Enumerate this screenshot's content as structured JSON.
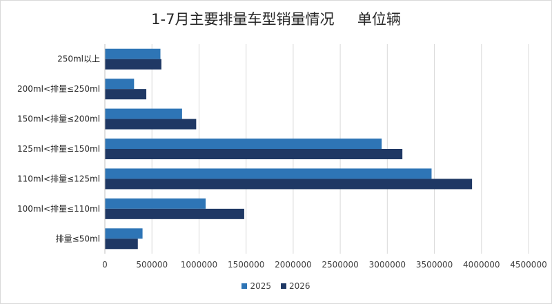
{
  "chart_data": {
    "type": "bar",
    "orientation": "horizontal",
    "title": "1-7月主要排量车型销量情况     单位辆",
    "categories": [
      "250ml以上",
      "200ml<排量≤250ml",
      "150ml<排量≤200ml",
      "125ml<排量≤150ml",
      "110ml<排量≤125ml",
      "100ml<排量≤110ml",
      "排量≤50ml"
    ],
    "series": [
      {
        "name": "2025",
        "color": "#2e75b6",
        "values": [
          590000,
          310000,
          820000,
          2940000,
          3470000,
          1070000,
          400000
        ]
      },
      {
        "name": "2026",
        "color": "#1f3864",
        "values": [
          600000,
          440000,
          970000,
          3160000,
          3900000,
          1480000,
          350000
        ]
      }
    ],
    "xlim": [
      0,
      4500000
    ],
    "x_ticks": [
      0,
      500000,
      1000000,
      1500000,
      2000000,
      2500000,
      3000000,
      3500000,
      4000000,
      4500000
    ],
    "x_tick_labels": [
      "0",
      "500000",
      "1000000",
      "1500000",
      "2000000",
      "2500000",
      "3000000",
      "3500000",
      "4000000",
      "4500000"
    ],
    "grid": true,
    "legend_position": "bottom"
  }
}
